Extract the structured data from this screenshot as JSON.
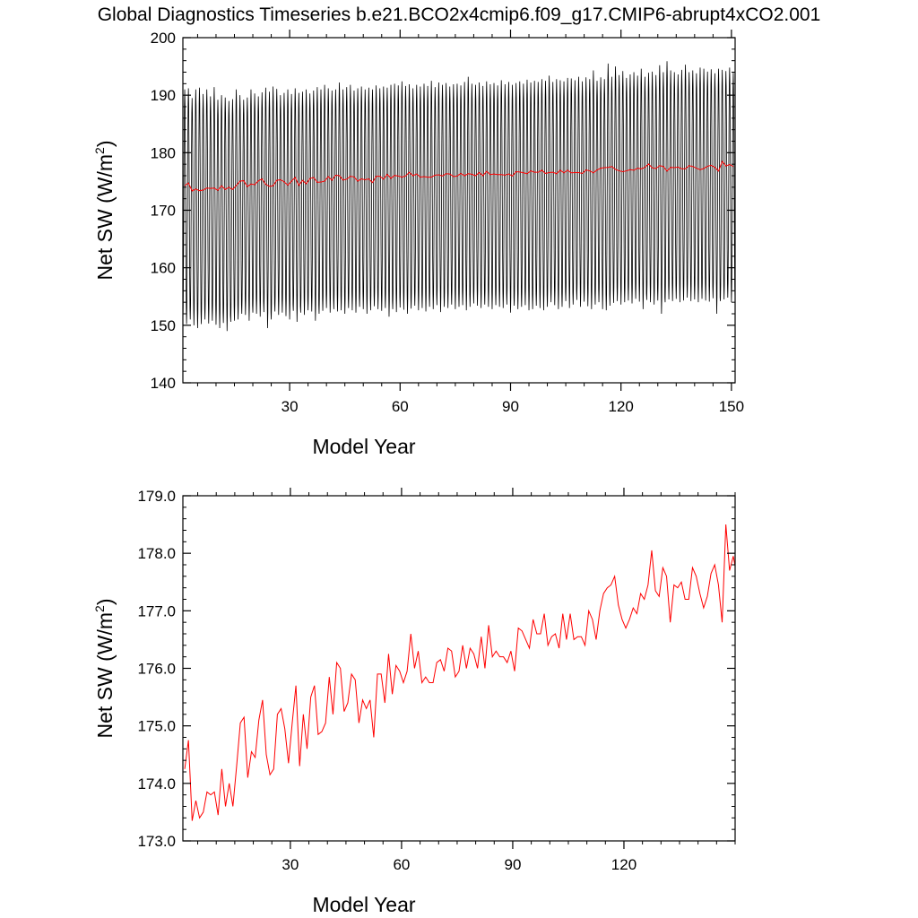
{
  "figure_title": "Global Diagnostics Timeseries b.e21.BCO2x4cmip6.f09_g17.CMIP6-abrupt4xCO2.001",
  "colors": {
    "monthly": "#000000",
    "annual": "#ff0000",
    "axes": "#000000"
  },
  "chart_data": [
    {
      "type": "line",
      "xlabel": "Model Year",
      "ylabel_main": "Net SW (W/m",
      "ylabel_sup": "2",
      "ylabel_tail": ")",
      "xlim": [
        1,
        151
      ],
      "ylim": [
        140,
        200
      ],
      "xticks": [
        30,
        60,
        90,
        120,
        150
      ],
      "yticks": [
        140,
        150,
        160,
        170,
        180,
        190,
        200
      ],
      "ytick_labels": [
        "140",
        "150",
        "160",
        "170",
        "180",
        "190",
        "200"
      ],
      "series": [
        {
          "kind": "monthly",
          "annual_max": [
            191.0,
            191.2,
            189.5,
            191.0,
            191.3,
            190.2,
            191.0,
            189.8,
            191.4,
            189.2,
            190.0,
            189.6,
            189.0,
            189.3,
            191.0,
            190.0,
            189.2,
            189.6,
            191.0,
            190.3,
            189.8,
            190.5,
            191.3,
            190.6,
            191.5,
            191.1,
            190.0,
            190.4,
            191.0,
            190.2,
            191.2,
            190.4,
            190.6,
            191.0,
            190.3,
            190.8,
            191.4,
            191.0,
            191.8,
            191.2,
            190.8,
            191.0,
            192.2,
            191.0,
            191.4,
            191.8,
            190.8,
            191.2,
            191.5,
            191.0,
            191.3,
            191.0,
            191.7,
            191.2,
            191.5,
            191.3,
            191.8,
            192.0,
            191.7,
            192.4,
            191.6,
            191.9,
            191.2,
            191.8,
            191.5,
            192.0,
            191.6,
            192.5,
            191.4,
            192.2,
            191.8,
            192.1,
            191.5,
            191.9,
            192.0,
            191.7,
            192.3,
            193.2,
            192.0,
            191.8,
            192.2,
            191.6,
            192.4,
            191.9,
            192.1,
            191.7,
            192.6,
            191.9,
            192.3,
            191.8,
            192.1,
            192.4,
            192.0,
            192.7,
            192.2,
            192.5,
            192.3,
            192.8,
            192.5,
            193.4,
            192.3,
            192.8,
            192.6,
            192.4,
            193.0,
            192.9,
            192.6,
            193.2,
            192.4,
            193.1,
            192.8,
            194.3,
            192.5,
            193.1,
            192.8,
            195.5,
            193.2,
            195.0,
            193.5,
            194.2,
            193.0,
            193.6,
            194.0,
            193.4,
            194.6,
            193.2,
            193.9,
            194.1,
            193.5,
            195.2,
            194.0,
            195.9,
            194.3,
            194.0,
            193.6,
            194.4,
            195.3,
            194.0,
            194.3,
            193.8,
            194.8,
            194.6,
            194.1,
            194.5,
            193.8,
            194.6,
            194.4,
            194.2,
            194.8,
            193.9,
            194.4
          ],
          "annual_min": [
            150.5,
            150.2,
            151.0,
            150.0,
            149.5,
            150.2,
            151.0,
            150.3,
            150.8,
            150.1,
            149.5,
            150.4,
            149.0,
            150.6,
            150.8,
            151.0,
            152.0,
            151.8,
            150.8,
            152.2,
            152.0,
            151.5,
            152.3,
            149.5,
            151.0,
            152.4,
            151.8,
            152.2,
            151.6,
            151.0,
            152.5,
            150.6,
            152.2,
            151.8,
            152.6,
            152.4,
            150.8,
            152.0,
            152.5,
            153.0,
            152.2,
            152.8,
            152.4,
            152.6,
            152.0,
            153.0,
            152.6,
            152.2,
            153.2,
            152.8,
            152.0,
            152.6,
            153.3,
            152.8,
            152.5,
            153.0,
            151.5,
            152.8,
            152.3,
            153.1,
            152.7,
            152.0,
            152.9,
            153.4,
            152.6,
            153.0,
            152.4,
            153.2,
            152.8,
            153.5,
            152.3,
            153.2,
            153.0,
            153.6,
            152.8,
            153.2,
            153.5,
            152.6,
            153.2,
            153.8,
            153.4,
            153.0,
            153.6,
            153.2,
            152.8,
            153.5,
            153.2,
            153.0,
            153.6,
            152.2,
            153.4,
            152.8,
            153.2,
            153.5,
            152.6,
            152.8,
            153.4,
            153.0,
            152.6,
            153.2,
            154.0,
            153.5,
            152.8,
            153.2,
            154.2,
            153.0,
            153.6,
            154.4,
            153.2,
            154.1,
            153.3,
            152.8,
            153.6,
            154.0,
            152.8,
            152.6,
            153.4,
            153.9,
            154.2,
            153.6,
            154.0,
            154.3,
            153.8,
            154.6,
            154.1,
            152.8,
            154.4,
            154.0,
            153.6,
            154.3,
            152.0,
            154.0,
            154.5,
            154.2,
            154.6,
            154.0,
            154.3,
            154.8,
            154.2,
            154.5,
            154.0,
            154.6,
            154.3,
            154.1,
            154.7,
            152.0,
            154.2,
            154.5,
            154.8,
            154.0,
            154.4
          ]
        },
        {
          "kind": "annual",
          "values": [
            174.25,
            174.75,
            173.35,
            173.7,
            173.4,
            173.5,
            173.85,
            173.8,
            173.85,
            173.45,
            174.25,
            173.6,
            174.0,
            173.6,
            174.3,
            175.05,
            175.15,
            174.1,
            174.55,
            174.45,
            175.1,
            175.45,
            174.5,
            174.15,
            174.25,
            175.2,
            175.3,
            174.95,
            174.35,
            175.05,
            175.7,
            174.3,
            175.2,
            174.6,
            175.5,
            175.7,
            174.85,
            174.9,
            175.05,
            175.85,
            175.2,
            176.1,
            176.0,
            175.25,
            175.4,
            175.9,
            175.8,
            175.05,
            175.45,
            175.3,
            175.45,
            174.8,
            175.9,
            175.9,
            175.4,
            176.25,
            175.55,
            176.05,
            175.95,
            175.75,
            175.95,
            176.6,
            176.0,
            176.3,
            175.75,
            175.85,
            175.75,
            175.75,
            176.1,
            176.15,
            175.95,
            176.35,
            176.3,
            175.85,
            175.95,
            176.4,
            176.0,
            176.35,
            176.25,
            176.0,
            176.55,
            176.0,
            176.75,
            176.2,
            176.3,
            176.2,
            176.2,
            176.1,
            176.3,
            175.95,
            176.7,
            176.65,
            176.5,
            176.35,
            176.85,
            176.6,
            176.6,
            176.95,
            176.4,
            176.55,
            176.6,
            176.35,
            176.95,
            176.5,
            176.95,
            176.5,
            176.55,
            176.55,
            176.4,
            177.0,
            176.85,
            176.5,
            177.0,
            177.3,
            177.4,
            177.45,
            177.6,
            177.1,
            176.85,
            176.7,
            176.85,
            177.05,
            176.95,
            177.3,
            177.2,
            177.45,
            178.05,
            177.35,
            177.25,
            177.75,
            177.6,
            176.8,
            177.45,
            177.4,
            177.5,
            177.2,
            177.2,
            177.75,
            177.6,
            177.3,
            177.05,
            177.25,
            177.65,
            177.8,
            177.45,
            176.8,
            178.5,
            177.7,
            177.95,
            177.6
          ]
        }
      ]
    },
    {
      "type": "line",
      "xlabel": "Model Year",
      "ylabel_main": "Net SW (W/m",
      "ylabel_sup": "2",
      "ylabel_tail": ")",
      "xlim": [
        1,
        150
      ],
      "ylim": [
        173,
        179
      ],
      "xticks": [
        30,
        60,
        90,
        120
      ],
      "yticks": [
        173,
        174,
        175,
        176,
        177,
        178,
        179
      ],
      "ytick_labels": [
        "173.0",
        "174.0",
        "175.0",
        "176.0",
        "177.0",
        "178.0",
        "179.0"
      ],
      "series": [
        {
          "kind": "annual",
          "source": "same annual-mean values as the red line in the upper panel"
        }
      ]
    }
  ]
}
